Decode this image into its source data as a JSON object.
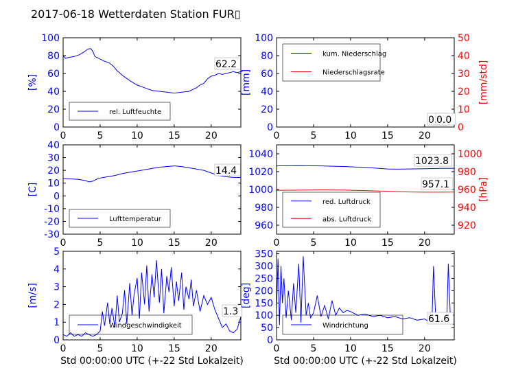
{
  "title": "2017-06-18 Wetterdaten Station FUR▯",
  "colors": {
    "blue": "#0000ff",
    "red": "#ff0000",
    "black": "#000000"
  },
  "chart_data": [
    {
      "type": "line",
      "xlim": [
        0,
        24
      ],
      "xticks": [
        0,
        5,
        10,
        15,
        20
      ],
      "ylim": [
        0,
        100
      ],
      "yticks": [
        0,
        20,
        40,
        60,
        80,
        100
      ],
      "ylabel": "[%]",
      "xlabel": "",
      "series": [
        {
          "name": "rel. Luftfeuchte",
          "color": "#0000ff",
          "x": [
            0,
            0.3,
            0.8,
            1.5,
            2.2,
            2.8,
            3.3,
            3.7,
            4.0,
            4.3,
            4.8,
            5.5,
            6.2,
            6.8,
            7.3,
            8.0,
            9.0,
            10.0,
            11.0,
            12.0,
            13.0,
            14.0,
            15.0,
            16.0,
            17.0,
            18.0,
            18.5,
            19.0,
            19.5,
            20.0,
            20.5,
            21.0,
            21.5,
            22.0,
            22.5,
            23.0,
            23.5,
            24.0
          ],
          "y": [
            80,
            77,
            78,
            79,
            81,
            84,
            87,
            88,
            85,
            79,
            77,
            74,
            72,
            68,
            63,
            58,
            52,
            47,
            44,
            41,
            40,
            39,
            38,
            39,
            40,
            44,
            47,
            49,
            54,
            57,
            58,
            60,
            59,
            60,
            61,
            62,
            61,
            62
          ]
        }
      ],
      "value_label": "62.2"
    },
    {
      "type": "line",
      "xlim": [
        0,
        24
      ],
      "xticks": [
        0,
        5,
        10,
        15,
        20
      ],
      "ylim": [
        0,
        100
      ],
      "yticks": [
        0,
        20,
        40,
        60,
        80,
        100
      ],
      "ylabel": "[mm]",
      "y2lim": [
        0,
        50
      ],
      "y2ticks": [
        0,
        10,
        20,
        30,
        40,
        50
      ],
      "y2label": "[mm/std]",
      "series": [
        {
          "name": "kum. Niederschlag",
          "color": "#0000ff",
          "axis": "left",
          "x": [
            0,
            24
          ],
          "y": [
            0,
            0
          ]
        },
        {
          "name": "Niederschlagsrate",
          "color": "#ff0000",
          "axis": "right",
          "x": [
            0,
            24
          ],
          "y": [
            0,
            0
          ]
        }
      ],
      "value_labels": [
        "0.0",
        "0.0"
      ]
    },
    {
      "type": "line",
      "xlim": [
        0,
        24
      ],
      "xticks": [
        0,
        5,
        10,
        15,
        20
      ],
      "ylim": [
        -30,
        40
      ],
      "yticks": [
        -30,
        -20,
        -10,
        0,
        10,
        20,
        30,
        40
      ],
      "ylabel": "[C]",
      "series": [
        {
          "name": "Lufttemperatur",
          "color": "#0000ff",
          "x": [
            0,
            1,
            2,
            3,
            3.5,
            4,
            4.5,
            5,
            6,
            7,
            8,
            9,
            10,
            11,
            12,
            13,
            14,
            15,
            16,
            17,
            18,
            19,
            20,
            21,
            22,
            23,
            24
          ],
          "y": [
            13.5,
            13.3,
            13,
            12,
            11,
            11.5,
            13,
            14,
            15,
            16,
            17.5,
            18.5,
            19.5,
            20.5,
            21.5,
            22.5,
            23,
            23.5,
            23,
            22,
            21,
            20,
            18,
            16,
            15,
            14.5,
            14.4
          ]
        }
      ],
      "value_label": "14.4"
    },
    {
      "type": "line",
      "xlim": [
        0,
        24
      ],
      "xticks": [
        0,
        5,
        10,
        15,
        20
      ],
      "ylim": [
        950,
        1050
      ],
      "yticks": [
        960,
        980,
        1000,
        1020,
        1040
      ],
      "ylabel": "",
      "y2lim": [
        910,
        1010
      ],
      "y2ticks": [
        920,
        940,
        960,
        980,
        1000
      ],
      "y2label": "[hPa]",
      "series": [
        {
          "name": "red. Luftdruck",
          "color": "#0000ff",
          "axis": "left",
          "x": [
            0,
            3,
            6,
            9,
            12,
            15,
            16,
            18,
            20,
            22,
            24
          ],
          "y": [
            1026.5,
            1026.8,
            1026.5,
            1025.8,
            1024.8,
            1023.0,
            1022.8,
            1023.0,
            1023.3,
            1023.6,
            1023.8
          ]
        },
        {
          "name": "abs. Luftdruck",
          "color": "#ff0000",
          "axis": "right",
          "x": [
            0,
            3,
            6,
            9,
            12,
            15,
            18,
            20,
            22,
            24
          ],
          "y": [
            959,
            959.3,
            959.6,
            959.4,
            958.8,
            958.0,
            957.2,
            957.0,
            957.0,
            957.1
          ]
        }
      ],
      "value_labels": [
        "1023.8",
        "957.1"
      ]
    },
    {
      "type": "line",
      "xlim": [
        0,
        24
      ],
      "xticks": [
        0,
        5,
        10,
        15,
        20
      ],
      "ylim": [
        0,
        5
      ],
      "yticks": [
        0,
        1,
        2,
        3,
        4,
        5
      ],
      "ylabel": "[m/s]",
      "xlabel": "Std 00:00:00 UTC (+-22 Std Lokalzeit)",
      "series": [
        {
          "name": "Windgeschwindigkeit",
          "color": "#0000ff",
          "x": [
            0,
            0.5,
            1,
            1.5,
            2,
            2.5,
            3,
            3.5,
            4,
            4.5,
            5,
            5.3,
            5.6,
            6,
            6.3,
            6.6,
            7,
            7.3,
            7.6,
            8,
            8.3,
            8.6,
            9,
            9.3,
            9.6,
            10,
            10.3,
            10.6,
            11,
            11.3,
            11.6,
            12,
            12.3,
            12.6,
            13,
            13.3,
            13.6,
            14,
            14.3,
            14.6,
            15,
            15.3,
            15.6,
            16,
            16.3,
            16.6,
            17,
            17.3,
            17.6,
            18,
            18.5,
            19,
            19.5,
            20,
            20.5,
            21,
            21.5,
            22,
            22.5,
            23,
            23.5,
            24
          ],
          "y": [
            0.3,
            0.2,
            0.4,
            0.2,
            0.3,
            0.2,
            0.4,
            0.3,
            0.2,
            0.3,
            0.5,
            1.6,
            0.8,
            2.1,
            0.9,
            1.8,
            0.7,
            2.5,
            1.0,
            1.5,
            2.8,
            0.9,
            3.2,
            1.4,
            2.6,
            3.5,
            1.2,
            3.8,
            2.0,
            4.2,
            1.6,
            3.7,
            2.4,
            4.5,
            2.1,
            4.0,
            1.5,
            3.6,
            2.7,
            4.1,
            1.9,
            3.3,
            2.2,
            3.8,
            1.7,
            3.0,
            2.3,
            3.4,
            1.9,
            2.8,
            1.6,
            2.5,
            2.0,
            2.4,
            1.7,
            1.2,
            0.7,
            0.9,
            0.5,
            0.4,
            0.6,
            1.3
          ]
        }
      ],
      "value_label": "1.3"
    },
    {
      "type": "line",
      "xlim": [
        0,
        24
      ],
      "xticks": [
        0,
        5,
        10,
        15,
        20
      ],
      "ylim": [
        0,
        360
      ],
      "yticks": [
        0,
        50,
        100,
        150,
        200,
        250,
        300,
        350
      ],
      "ylabel": "[deg]",
      "xlabel": "Std 00:00:00 UTC (+-22 Std Lokalzeit)",
      "series": [
        {
          "name": "Windrichtung",
          "color": "#0000ff",
          "x": [
            0,
            0.2,
            0.4,
            0.6,
            0.8,
            1.0,
            1.3,
            1.6,
            2.0,
            2.3,
            2.6,
            3.0,
            3.3,
            3.6,
            4.0,
            4.3,
            4.6,
            5.0,
            5.5,
            6.0,
            6.5,
            7.0,
            7.5,
            8.0,
            8.5,
            9.0,
            9.5,
            10.0,
            11.0,
            12.0,
            13.0,
            14.0,
            15.0,
            16.0,
            17.0,
            18.0,
            19.0,
            20.0,
            20.5,
            21.0,
            21.2,
            21.5,
            22.0,
            22.5,
            23.0,
            23.2,
            23.5,
            24.0
          ],
          "y": [
            120,
            330,
            60,
            300,
            150,
            250,
            90,
            200,
            80,
            230,
            110,
            310,
            70,
            340,
            100,
            150,
            90,
            110,
            180,
            95,
            140,
            85,
            160,
            100,
            130,
            110,
            120,
            115,
            100,
            105,
            95,
            100,
            90,
            95,
            85,
            90,
            80,
            85,
            75,
            80,
            300,
            90,
            70,
            75,
            80,
            310,
            70,
            62
          ]
        }
      ],
      "value_label": "61.6"
    }
  ]
}
